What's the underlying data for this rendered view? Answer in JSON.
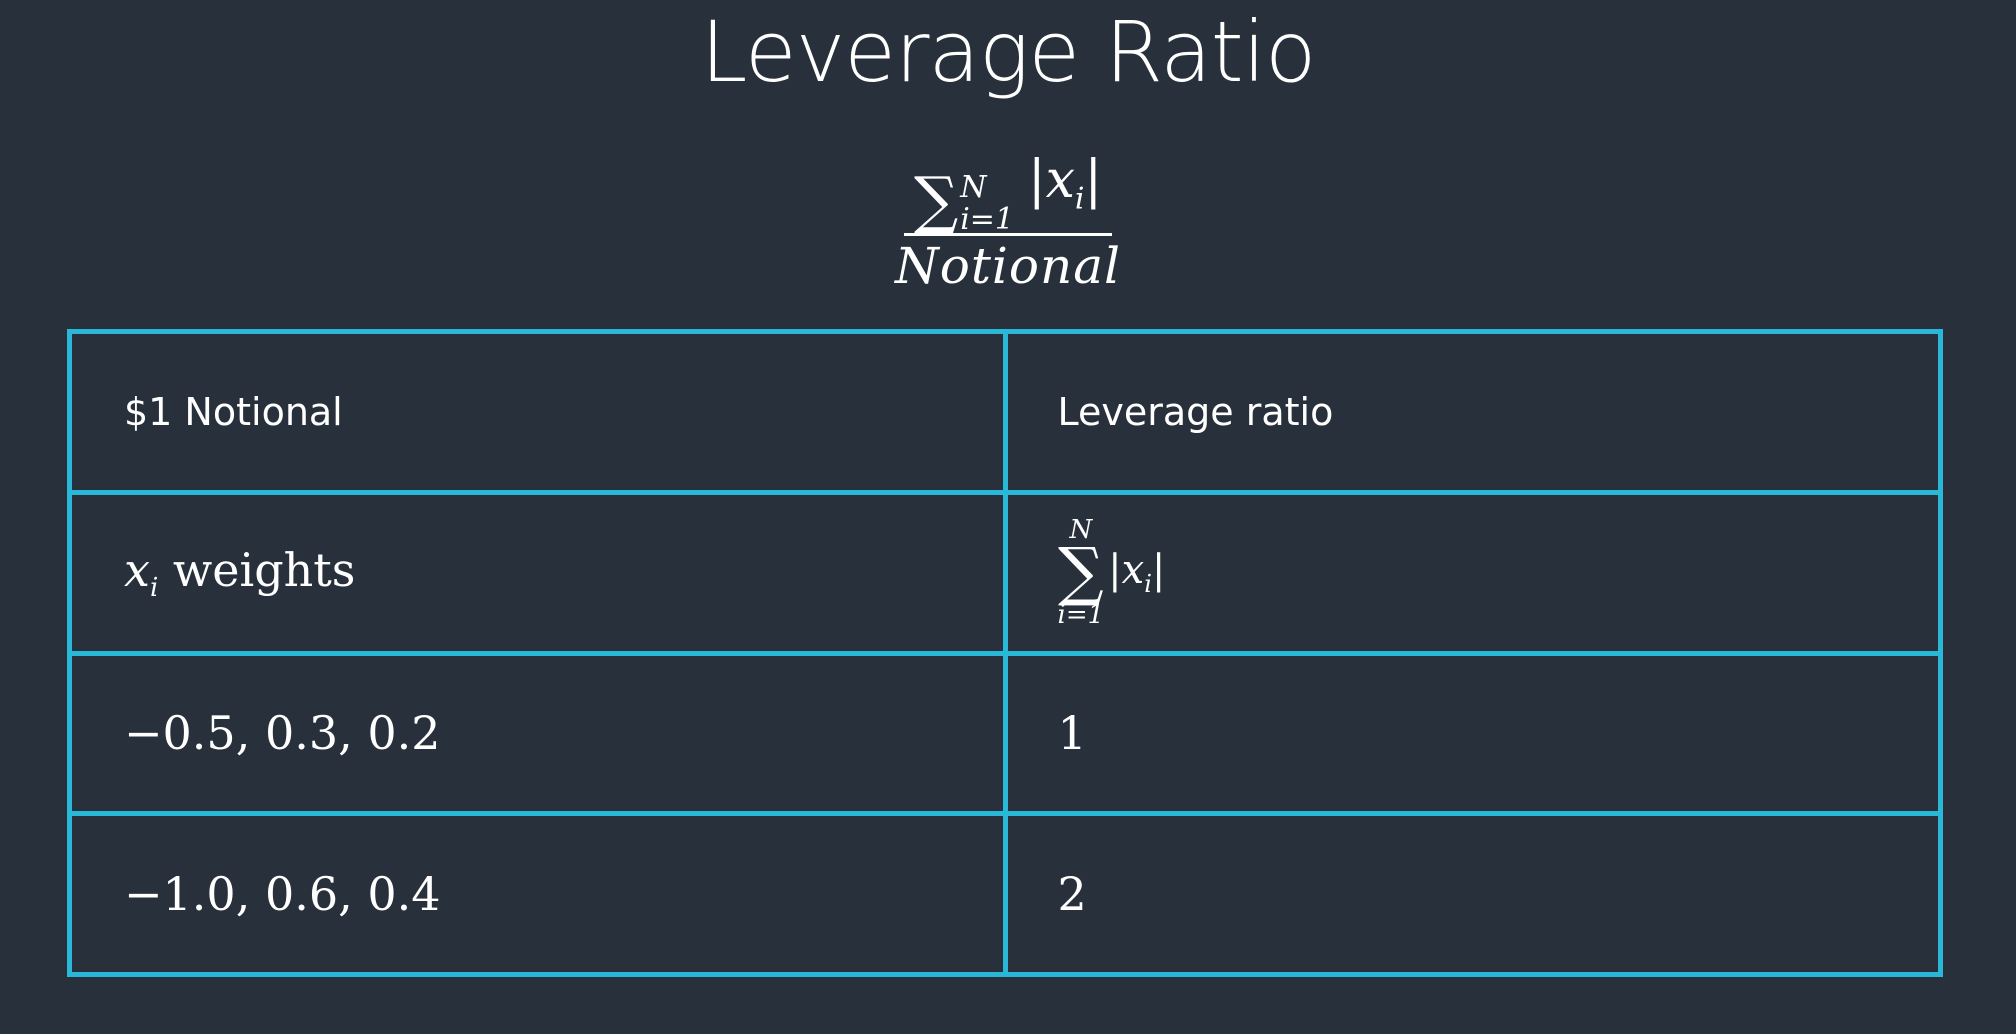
{
  "slide": {
    "title": "Leverage Ratio"
  },
  "formula": {
    "sum_symbol": "∑",
    "sum_upper": "N",
    "sum_lower": "i=1",
    "numerator_abs": "|xᵢ|",
    "numerator_var": "x",
    "numerator_sub": "i",
    "denominator": "Notional"
  },
  "table": {
    "header": {
      "left": "$1 Notional",
      "right": "Leverage ratio"
    },
    "weights_row": {
      "left_var": "x",
      "left_sub": "i",
      "left_word": "weights",
      "sum_upper": "N",
      "sum_symbol": "∑",
      "sum_lower": "i=1",
      "abs_var": "x",
      "abs_sub": "i"
    },
    "rows": [
      {
        "weights": "−0.5, 0.3, 0.2",
        "ratio": "1"
      },
      {
        "weights": "−1.0, 0.6, 0.4",
        "ratio": "2"
      }
    ]
  },
  "colors": {
    "background": "#28313b",
    "table_border": "#2ab8d9",
    "text": "#ffffff"
  }
}
